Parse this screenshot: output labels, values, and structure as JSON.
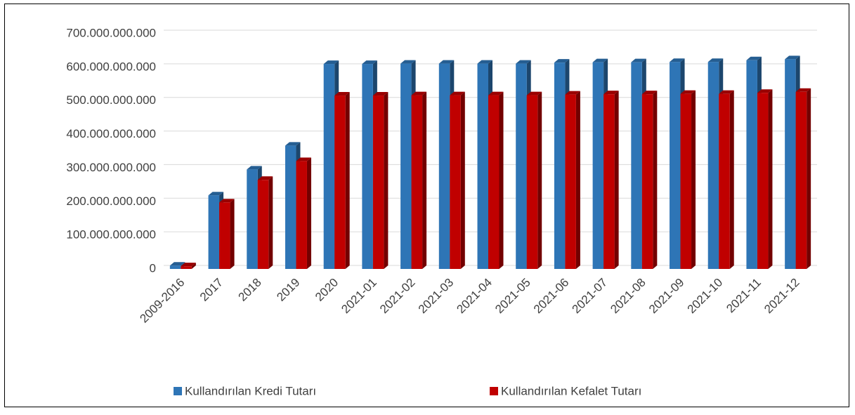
{
  "chart_data": {
    "type": "bar3d",
    "categories": [
      "2009-2016",
      "2017",
      "2018",
      "2019",
      "2020",
      "2021-01",
      "2021-02",
      "2021-03",
      "2021-04",
      "2021-05",
      "2021-06",
      "2021-07",
      "2021-08",
      "2021-09",
      "2021-10",
      "2021-11",
      "2021-12"
    ],
    "series": [
      {
        "name": "Kullandırılan Kredi Tutarı",
        "color": "#2e75b6",
        "values": [
          10000000000,
          219000000000,
          296000000000,
          367000000000,
          610000000000,
          610000000000,
          611000000000,
          611000000000,
          611000000000,
          611000000000,
          614000000000,
          615000000000,
          615000000000,
          616000000000,
          616000000000,
          621000000000,
          624000000000
        ]
      },
      {
        "name": "Kullandırılan Kefalet Tutarı",
        "color": "#c00000",
        "values": [
          8000000000,
          198000000000,
          265000000000,
          321000000000,
          516000000000,
          516000000000,
          517000000000,
          517000000000,
          517000000000,
          517000000000,
          519000000000,
          520000000000,
          520000000000,
          521000000000,
          521000000000,
          524000000000,
          527000000000
        ]
      }
    ],
    "ylim": [
      0,
      700000000000
    ],
    "yticks": [
      {
        "value": 0,
        "label": "0"
      },
      {
        "value": 100000000000,
        "label": "100.000.000.000"
      },
      {
        "value": 200000000000,
        "label": "200.000.000.000"
      },
      {
        "value": 300000000000,
        "label": "300.000.000.000"
      },
      {
        "value": 400000000000,
        "label": "400.000.000.000"
      },
      {
        "value": 500000000000,
        "label": "500.000.000.000"
      },
      {
        "value": 600000000000,
        "label": "600.000.000.000"
      },
      {
        "value": 700000000000,
        "label": "700.000.000.000"
      }
    ],
    "grid": true
  }
}
